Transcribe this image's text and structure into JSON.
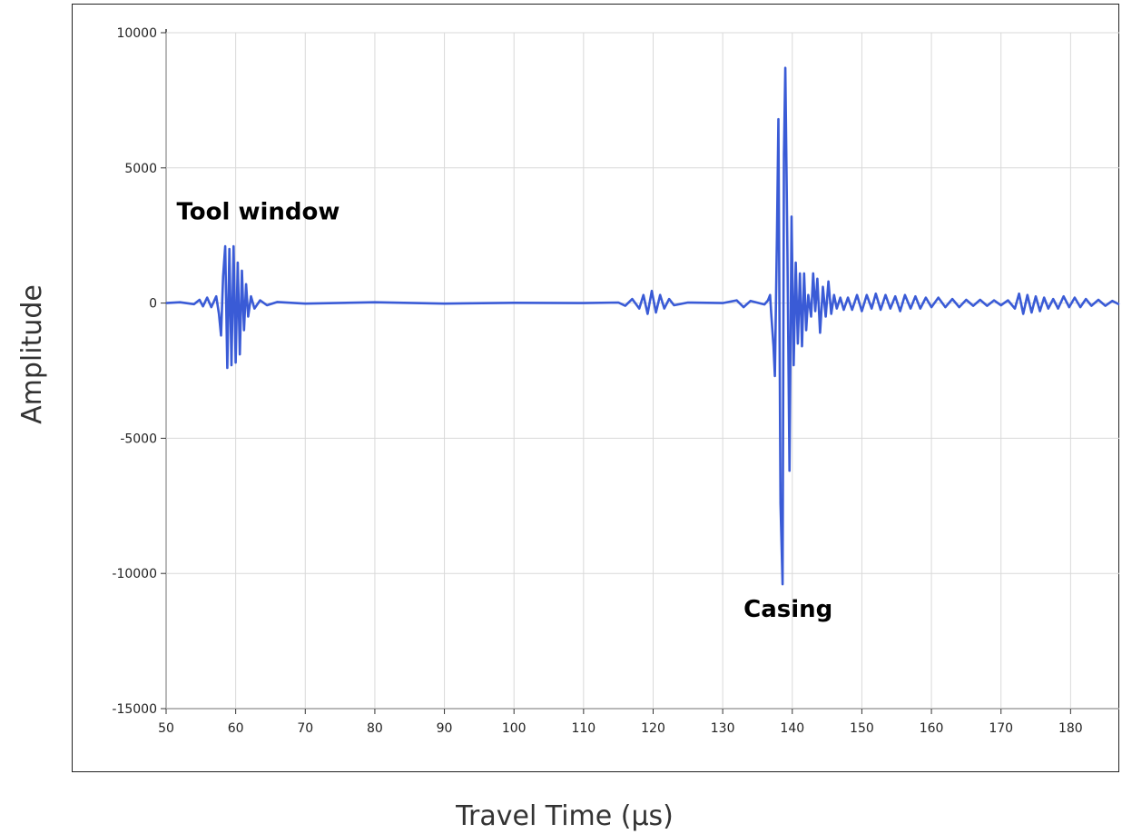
{
  "chart_data": {
    "type": "line",
    "title": "",
    "xlabel": "Travel Time (µs)",
    "ylabel": "Amplitude",
    "xlim": [
      50,
      187
    ],
    "ylim": [
      -15000,
      10000
    ],
    "xticks": [
      "50",
      "60",
      "70",
      "80",
      "90",
      "100",
      "110",
      "120",
      "130",
      "140",
      "150",
      "160",
      "170",
      "180"
    ],
    "yticks": [
      "10000",
      "5000",
      "0",
      "-5000",
      "-10000",
      "-15000"
    ],
    "grid": true,
    "line_color": "#3a5bd6",
    "annotations": [
      {
        "text": "Tool window",
        "x": 51.5,
        "y": 3100
      },
      {
        "text": "Casing",
        "x": 133,
        "y": -11600
      }
    ],
    "series": [
      {
        "values": [
          [
            50,
            0
          ],
          [
            52,
            30
          ],
          [
            54,
            -40
          ],
          [
            54.8,
            120
          ],
          [
            55.3,
            -120
          ],
          [
            55.9,
            200
          ],
          [
            56.5,
            -150
          ],
          [
            57.2,
            250
          ],
          [
            57.6,
            -400
          ],
          [
            57.9,
            -1200
          ],
          [
            58.2,
            1000
          ],
          [
            58.5,
            2100
          ],
          [
            58.8,
            -2400
          ],
          [
            59.1,
            2000
          ],
          [
            59.4,
            -2300
          ],
          [
            59.7,
            2100
          ],
          [
            60,
            -2200
          ],
          [
            60.3,
            1500
          ],
          [
            60.6,
            -1900
          ],
          [
            60.9,
            1200
          ],
          [
            61.2,
            -1000
          ],
          [
            61.5,
            700
          ],
          [
            61.8,
            -500
          ],
          [
            62.2,
            250
          ],
          [
            62.7,
            -200
          ],
          [
            63.5,
            100
          ],
          [
            64.5,
            -80
          ],
          [
            66,
            40
          ],
          [
            70,
            -20
          ],
          [
            80,
            30
          ],
          [
            90,
            -20
          ],
          [
            100,
            10
          ],
          [
            110,
            0
          ],
          [
            115,
            20
          ],
          [
            116,
            -100
          ],
          [
            117,
            150
          ],
          [
            118,
            -200
          ],
          [
            118.6,
            300
          ],
          [
            119.2,
            -400
          ],
          [
            119.8,
            450
          ],
          [
            120.4,
            -350
          ],
          [
            121,
            300
          ],
          [
            121.6,
            -200
          ],
          [
            122.3,
            150
          ],
          [
            123,
            -80
          ],
          [
            125,
            20
          ],
          [
            130,
            0
          ],
          [
            132,
            100
          ],
          [
            133,
            -150
          ],
          [
            134,
            80
          ],
          [
            136,
            -50
          ],
          [
            136.5,
            100
          ],
          [
            136.8,
            300
          ],
          [
            137,
            -500
          ],
          [
            137.3,
            -1600
          ],
          [
            137.5,
            -2700
          ],
          [
            137.8,
            2500
          ],
          [
            138,
            6800
          ],
          [
            138.3,
            -7400
          ],
          [
            138.6,
            -10400
          ],
          [
            138.8,
            5500
          ],
          [
            139,
            8700
          ],
          [
            139.3,
            2000
          ],
          [
            139.6,
            -6200
          ],
          [
            139.9,
            3200
          ],
          [
            140.2,
            -2300
          ],
          [
            140.5,
            1500
          ],
          [
            140.8,
            -1500
          ],
          [
            141.1,
            1100
          ],
          [
            141.4,
            -1600
          ],
          [
            141.7,
            1100
          ],
          [
            142,
            -1000
          ],
          [
            142.3,
            300
          ],
          [
            142.7,
            -500
          ],
          [
            143,
            1100
          ],
          [
            143.3,
            -300
          ],
          [
            143.6,
            900
          ],
          [
            144,
            -1100
          ],
          [
            144.4,
            600
          ],
          [
            144.8,
            -500
          ],
          [
            145.2,
            800
          ],
          [
            145.6,
            -400
          ],
          [
            146,
            300
          ],
          [
            146.4,
            -200
          ],
          [
            146.9,
            200
          ],
          [
            147.4,
            -250
          ],
          [
            148,
            200
          ],
          [
            148.6,
            -250
          ],
          [
            149.3,
            300
          ],
          [
            150,
            -300
          ],
          [
            150.7,
            300
          ],
          [
            151.4,
            -200
          ],
          [
            152,
            350
          ],
          [
            152.7,
            -250
          ],
          [
            153.4,
            300
          ],
          [
            154.1,
            -200
          ],
          [
            154.8,
            250
          ],
          [
            155.5,
            -300
          ],
          [
            156.2,
            300
          ],
          [
            157,
            -200
          ],
          [
            157.7,
            250
          ],
          [
            158.4,
            -200
          ],
          [
            159.2,
            200
          ],
          [
            160,
            -150
          ],
          [
            161,
            200
          ],
          [
            162,
            -150
          ],
          [
            163,
            150
          ],
          [
            164,
            -150
          ],
          [
            165,
            120
          ],
          [
            166,
            -100
          ],
          [
            167,
            120
          ],
          [
            168,
            -100
          ],
          [
            169,
            100
          ],
          [
            170,
            -80
          ],
          [
            171,
            100
          ],
          [
            172,
            -200
          ],
          [
            172.6,
            350
          ],
          [
            173.2,
            -400
          ],
          [
            173.8,
            300
          ],
          [
            174.4,
            -350
          ],
          [
            175,
            250
          ],
          [
            175.6,
            -300
          ],
          [
            176.2,
            200
          ],
          [
            176.8,
            -200
          ],
          [
            177.5,
            150
          ],
          [
            178.2,
            -200
          ],
          [
            179,
            250
          ],
          [
            179.8,
            -150
          ],
          [
            180.6,
            200
          ],
          [
            181.4,
            -150
          ],
          [
            182.2,
            150
          ],
          [
            183,
            -100
          ],
          [
            184,
            120
          ],
          [
            185,
            -100
          ],
          [
            186,
            80
          ],
          [
            187,
            -50
          ]
        ]
      }
    ]
  }
}
